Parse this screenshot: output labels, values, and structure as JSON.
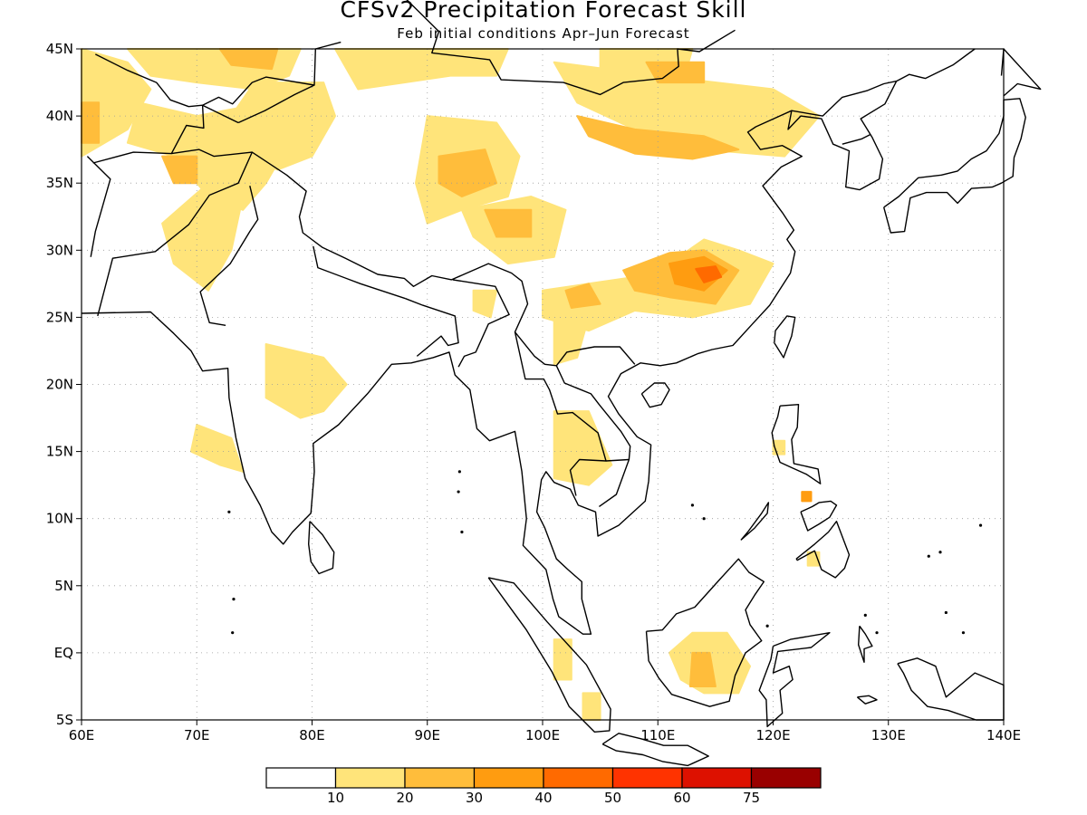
{
  "title": "CFSv2 Precipitation Forecast Skill",
  "subtitle": "Feb initial conditions  Apr–Jun Forecast",
  "map": {
    "lon_range": [
      60,
      140
    ],
    "lat_range": [
      -5,
      45
    ],
    "lon_ticks": [
      {
        "value": 60,
        "label": "60E"
      },
      {
        "value": 70,
        "label": "70E"
      },
      {
        "value": 80,
        "label": "80E"
      },
      {
        "value": 90,
        "label": "90E"
      },
      {
        "value": 100,
        "label": "100E"
      },
      {
        "value": 110,
        "label": "110E"
      },
      {
        "value": 120,
        "label": "120E"
      },
      {
        "value": 130,
        "label": "130E"
      },
      {
        "value": 140,
        "label": "140E"
      }
    ],
    "lat_ticks": [
      {
        "value": 45,
        "label": "45N"
      },
      {
        "value": 40,
        "label": "40N"
      },
      {
        "value": 35,
        "label": "35N"
      },
      {
        "value": 30,
        "label": "30N"
      },
      {
        "value": 25,
        "label": "25N"
      },
      {
        "value": 20,
        "label": "20N"
      },
      {
        "value": 15,
        "label": "15N"
      },
      {
        "value": 10,
        "label": "10N"
      },
      {
        "value": 5,
        "label": "5N"
      },
      {
        "value": 0,
        "label": "EQ"
      },
      {
        "value": -5,
        "label": "5S"
      }
    ],
    "gridlines": "dotted"
  },
  "colorbar": {
    "colors": [
      "#ffffff",
      "#ffe47a",
      "#ffbd3b",
      "#ff9c10",
      "#ff6a00",
      "#ff3300",
      "#dd1100",
      "#990000"
    ],
    "labels": [
      "10",
      "20",
      "30",
      "40",
      "50",
      "60",
      "75"
    ]
  }
}
